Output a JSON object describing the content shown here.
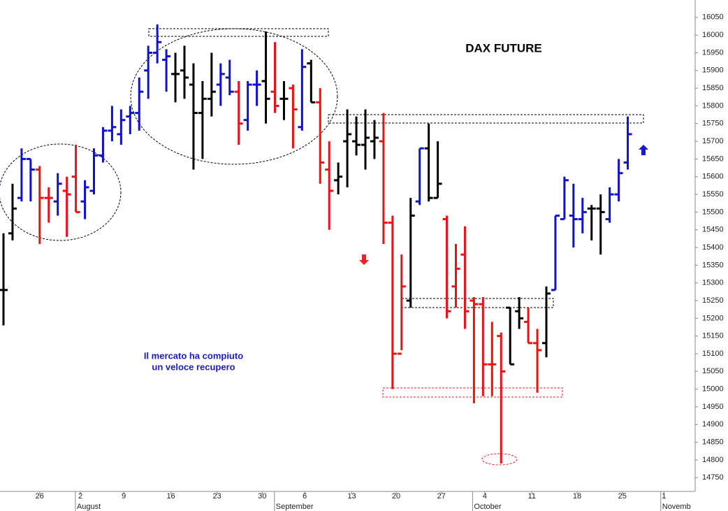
{
  "chart_data": {
    "type": "ohlc",
    "title": "DAX FUTURE",
    "annotation": [
      "Il mercato ha compiuto",
      "un veloce recupero"
    ],
    "open": [
      15280,
      15440,
      15540,
      15650,
      15620,
      15540,
      15530,
      15560,
      15600,
      15530,
      15560,
      15660,
      15730,
      15720,
      15770,
      15780,
      15900,
      15950,
      15930,
      15890,
      15900,
      15860,
      15780,
      15820,
      15860,
      15880,
      15840,
      15760,
      15860,
      15870,
      15840,
      15820,
      15850,
      15740,
      15920,
      15810,
      15620,
      15590,
      15700,
      15700,
      15690,
      15700,
      15700,
      15470,
      15100,
      15250,
      15530,
      15680,
      15540,
      15480,
      15290,
      15380,
      15250,
      15240,
      15070,
      15150,
      15230,
      15220,
      15190,
      15130,
      15130,
      15280,
      15480,
      15490,
      15480,
      15510,
      15510,
      15480,
      15550,
      15640
    ],
    "high": [
      15440,
      15580,
      15680,
      15650,
      15630,
      15570,
      15610,
      15600,
      15690,
      15590,
      15680,
      15740,
      15800,
      15790,
      15800,
      15880,
      15970,
      16030,
      15960,
      15950,
      15970,
      15920,
      15870,
      15950,
      15920,
      15930,
      15870,
      15870,
      15900,
      16010,
      15980,
      15870,
      15860,
      15960,
      15930,
      15850,
      15700,
      15640,
      15790,
      15770,
      15790,
      15760,
      15780,
      15490,
      15380,
      15540,
      15680,
      15750,
      15700,
      15490,
      15410,
      15460,
      15260,
      15260,
      15190,
      15160,
      15230,
      15260,
      15230,
      15170,
      15290,
      15490,
      15600,
      15580,
      15540,
      15520,
      15550,
      15570,
      15650,
      15770
    ],
    "low": [
      15180,
      15420,
      15530,
      15530,
      15410,
      15470,
      15490,
      15430,
      15500,
      15480,
      15550,
      15640,
      15700,
      15690,
      15720,
      15730,
      15820,
      15920,
      15840,
      15810,
      15820,
      15620,
      15650,
      15770,
      15800,
      15830,
      15690,
      15730,
      15800,
      15750,
      15780,
      15760,
      15680,
      15730,
      15810,
      15580,
      15450,
      15550,
      15570,
      15660,
      15620,
      15650,
      15410,
      15000,
      15110,
      15230,
      15520,
      15530,
      15540,
      15200,
      15230,
      15170,
      14960,
      14980,
      14980,
      14790,
      15070,
      15170,
      15130,
      14990,
      15090,
      15280,
      15480,
      15400,
      15440,
      15420,
      15380,
      15470,
      15530,
      15620
    ],
    "close": [
      15280,
      15510,
      15650,
      15620,
      15540,
      15540,
      15580,
      15550,
      15500,
      15570,
      15660,
      15730,
      15740,
      15760,
      15780,
      15840,
      15950,
      15980,
      15940,
      15890,
      15880,
      15780,
      15820,
      15840,
      15890,
      15840,
      15750,
      15860,
      15860,
      15820,
      15800,
      15820,
      15790,
      15910,
      15810,
      15640,
      15560,
      15600,
      15720,
      15690,
      15710,
      15710,
      15470,
      15100,
      15290,
      15490,
      15680,
      15540,
      15580,
      15220,
      15340,
      15220,
      15240,
      15070,
      15070,
      15050,
      15070,
      15200,
      15130,
      15110,
      15270,
      15490,
      15590,
      15480,
      15500,
      15510,
      15500,
      15550,
      15610,
      15720
    ],
    "colors": [
      "#000000",
      "#000000",
      "#1010d0",
      "#1010d0",
      "#ee1111",
      "#ee1111",
      "#1010d0",
      "#ee1111",
      "#ee1111",
      "#1010d0",
      "#1010d0",
      "#1010d0",
      "#1010d0",
      "#1010d0",
      "#1010d0",
      "#1010d0",
      "#1010d0",
      "#1010d0",
      "#1010d0",
      "#000000",
      "#000000",
      "#000000",
      "#000000",
      "#000000",
      "#1010d0",
      "#1010d0",
      "#ee1111",
      "#1010d0",
      "#1010d0",
      "#000000",
      "#ee1111",
      "#000000",
      "#ee1111",
      "#1010d0",
      "#000000",
      "#ee1111",
      "#ee1111",
      "#000000",
      "#000000",
      "#000000",
      "#000000",
      "#000000",
      "#ee1111",
      "#ee1111",
      "#ee1111",
      "#000000",
      "#1010d0",
      "#000000",
      "#000000",
      "#ee1111",
      "#ee1111",
      "#ee1111",
      "#ee1111",
      "#ee1111",
      "#ee1111",
      "#ee1111",
      "#000000",
      "#000000",
      "#ee1111",
      "#ee1111",
      "#000000",
      "#1010d0",
      "#1010d0",
      "#1010d0",
      "#1010d0",
      "#000000",
      "#000000",
      "#1010d0",
      "#1010d0",
      "#1010d0"
    ],
    "ylim": [
      14717,
      16099
    ],
    "yticks": [
      14750,
      14800,
      14850,
      14900,
      14950,
      15000,
      15050,
      15100,
      15150,
      15200,
      15250,
      15300,
      15350,
      15400,
      15450,
      15500,
      15550,
      15600,
      15650,
      15700,
      15750,
      15800,
      15850,
      15900,
      15950,
      16000,
      16050
    ],
    "xticks": [
      {
        "value": 4,
        "label": "26"
      },
      {
        "value": 8.5,
        "label": "2"
      },
      {
        "value": 13.3,
        "label": "9"
      },
      {
        "value": 18.5,
        "label": "16"
      },
      {
        "value": 23.6,
        "label": "23"
      },
      {
        "value": 28.6,
        "label": "30"
      },
      {
        "value": 33.3,
        "label": "6"
      },
      {
        "value": 38.5,
        "label": "13"
      },
      {
        "value": 43.4,
        "label": "20"
      },
      {
        "value": 48.4,
        "label": "27"
      },
      {
        "value": 53.2,
        "label": "4"
      },
      {
        "value": 58.4,
        "label": "11"
      },
      {
        "value": 63.4,
        "label": "18"
      },
      {
        "value": 68.4,
        "label": "25"
      },
      {
        "value": 73,
        "label": "1"
      }
    ],
    "month_ticks": [
      {
        "value": 8.1,
        "label": "August"
      },
      {
        "value": 30.1,
        "label": "September"
      },
      {
        "value": 52,
        "label": "October"
      },
      {
        "value": 72.8,
        "label": "Novemb"
      }
    ]
  }
}
